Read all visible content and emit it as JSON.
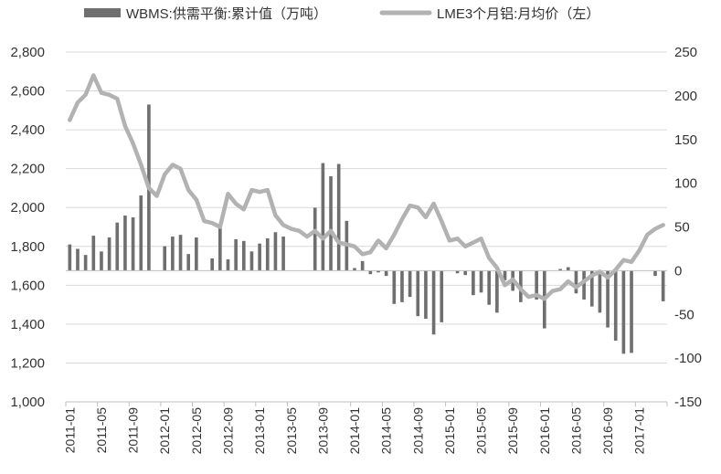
{
  "chart_data": {
    "type": "bar+line",
    "legend_position": "top",
    "grid": {
      "horizontal": true,
      "vertical": false
    },
    "colors": {
      "bar": "#6f6f6f",
      "line": "#b2b2b2",
      "grid": "#d9d9d9",
      "axis": "#bfbfbf"
    },
    "left_axis": {
      "ylim": [
        1000,
        2800
      ],
      "ticks": [
        1000,
        1200,
        1400,
        1600,
        1800,
        2000,
        2200,
        2400,
        2600,
        2800
      ],
      "tick_labels": [
        "1,000",
        "1,200",
        "1,400",
        "1,600",
        "1,800",
        "2,000",
        "2,200",
        "2,400",
        "2,600",
        "2,800"
      ]
    },
    "right_axis": {
      "ylim": [
        -150,
        250
      ],
      "ticks": [
        -150,
        -100,
        -50,
        0,
        50,
        100,
        150,
        200,
        250
      ],
      "tick_labels": [
        "-150",
        "-100",
        "-50",
        "0",
        "50",
        "100",
        "150",
        "200",
        "250"
      ]
    },
    "x_tick_labels": [
      "2011-01",
      "2011-05",
      "2011-09",
      "2012-01",
      "2012-05",
      "2012-09",
      "2013-01",
      "2013-05",
      "2013-09",
      "2014-01",
      "2014-05",
      "2014-09",
      "2015-01",
      "2015-05",
      "2015-09",
      "2016-01",
      "2016-05",
      "2016-09",
      "2017-01"
    ],
    "x": [
      "2011-01",
      "2011-02",
      "2011-03",
      "2011-04",
      "2011-05",
      "2011-06",
      "2011-07",
      "2011-08",
      "2011-09",
      "2011-10",
      "2011-11",
      "2011-12",
      "2012-01",
      "2012-02",
      "2012-03",
      "2012-04",
      "2012-05",
      "2012-06",
      "2012-07",
      "2012-08",
      "2012-09",
      "2012-10",
      "2012-11",
      "2012-12",
      "2013-01",
      "2013-02",
      "2013-03",
      "2013-04",
      "2013-05",
      "2013-06",
      "2013-07",
      "2013-08",
      "2013-09",
      "2013-10",
      "2013-11",
      "2013-12",
      "2014-01",
      "2014-02",
      "2014-03",
      "2014-04",
      "2014-05",
      "2014-06",
      "2014-07",
      "2014-08",
      "2014-09",
      "2014-10",
      "2014-11",
      "2014-12",
      "2015-01",
      "2015-02",
      "2015-03",
      "2015-04",
      "2015-05",
      "2015-06",
      "2015-07",
      "2015-08",
      "2015-09",
      "2015-10",
      "2015-11",
      "2015-12",
      "2016-01",
      "2016-02",
      "2016-03",
      "2016-04",
      "2016-05",
      "2016-06",
      "2016-07",
      "2016-08",
      "2016-09",
      "2016-10",
      "2016-11",
      "2016-12",
      "2017-01",
      "2017-02",
      "2017-03",
      "2017-04"
    ],
    "series": [
      {
        "name": "WBMS:供需平衡:累计值（万吨）",
        "type": "bar",
        "axis": "right",
        "values": [
          30,
          25,
          18,
          40,
          22,
          38,
          55,
          63,
          61,
          86,
          190,
          0,
          28,
          39,
          41,
          19,
          38,
          0,
          14,
          49,
          13,
          36,
          34,
          22,
          31,
          37,
          44,
          39,
          0,
          0,
          0,
          72,
          123,
          108,
          122,
          57,
          3,
          11,
          -4,
          -2,
          -6,
          -38,
          -36,
          -30,
          -52,
          -55,
          -73,
          -59,
          0,
          -3,
          -5,
          -28,
          -25,
          -39,
          -48,
          -11,
          -23,
          -36,
          0,
          -33,
          -66,
          0,
          2,
          4,
          -26,
          -33,
          -41,
          -48,
          -65,
          -80,
          -95,
          -94,
          0,
          0,
          -6,
          -35
        ]
      },
      {
        "name": "LME3个月铝:月均价（左）",
        "type": "line",
        "axis": "left",
        "values": [
          2450,
          2540,
          2580,
          2680,
          2590,
          2580,
          2560,
          2420,
          2330,
          2220,
          2100,
          2060,
          2170,
          2220,
          2200,
          2090,
          2040,
          1930,
          1920,
          1900,
          2070,
          2020,
          1990,
          2090,
          2080,
          2090,
          1960,
          1910,
          1890,
          1880,
          1850,
          1880,
          1840,
          1880,
          1820,
          1810,
          1800,
          1760,
          1770,
          1830,
          1790,
          1860,
          1940,
          2010,
          2000,
          1950,
          2020,
          1930,
          1830,
          1840,
          1800,
          1820,
          1840,
          1740,
          1690,
          1600,
          1630,
          1580,
          1540,
          1550,
          1530,
          1570,
          1580,
          1620,
          1590,
          1620,
          1650,
          1670,
          1640,
          1680,
          1730,
          1720,
          1780,
          1860,
          1890,
          1910
        ]
      }
    ]
  }
}
